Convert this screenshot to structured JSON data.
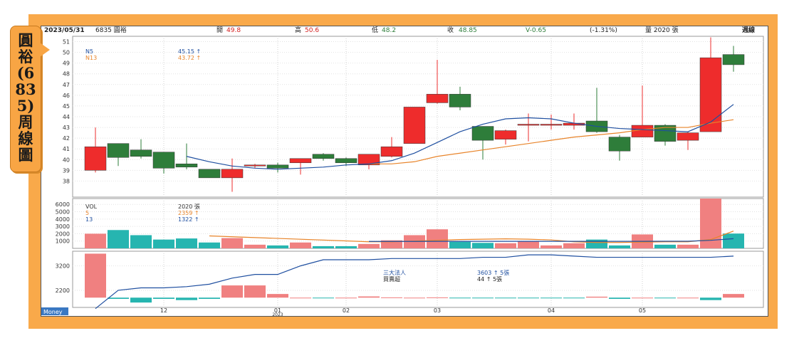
{
  "tag_title": "圓裕(6835)周線圖",
  "header": {
    "date": "2023/05/31",
    "stock": "6835 圓裕",
    "open_label": "開",
    "open_value": "49.8",
    "high_label": "高",
    "high_value": "50.6",
    "low_label": "低",
    "low_value": "48.2",
    "close_label": "收",
    "close_value": "48.85",
    "change": "V-0.65",
    "change_pct": "(-1.31%)",
    "volume": "量 2020 張",
    "period": "週線"
  },
  "colors": {
    "up": "#ee2c2c",
    "down": "#2e7d3a",
    "ma5": "#1f4fa0",
    "ma13": "#e8842a",
    "vol_up": "#f08080",
    "vol_down": "#26b5b0",
    "line3": "#1f4fa0"
  },
  "chart_data": [
    {
      "type": "candlestick",
      "legend": [
        {
          "name": "N5",
          "value": "45.15 ↑"
        },
        {
          "name": "N13",
          "value": "43.72 ↑"
        }
      ],
      "ylim": [
        36.5,
        51.5
      ],
      "yticks": [
        38,
        39,
        40,
        41,
        42,
        43,
        44,
        45,
        46,
        47,
        48,
        49,
        50,
        51
      ],
      "candles": [
        {
          "o": 39.0,
          "h": 43.0,
          "l": 38.8,
          "c": 41.2
        },
        {
          "o": 41.5,
          "h": 41.5,
          "l": 39.4,
          "c": 40.2
        },
        {
          "o": 40.9,
          "h": 41.9,
          "l": 40.1,
          "c": 40.3
        },
        {
          "o": 40.7,
          "h": 40.7,
          "l": 38.7,
          "c": 39.2
        },
        {
          "o": 39.6,
          "h": 41.5,
          "l": 39.1,
          "c": 39.3
        },
        {
          "o": 39.1,
          "h": 39.1,
          "l": 38.3,
          "c": 38.3
        },
        {
          "o": 38.3,
          "h": 40.1,
          "l": 37.0,
          "c": 39.1
        },
        {
          "o": 39.5,
          "h": 39.6,
          "l": 39.2,
          "c": 39.5
        },
        {
          "o": 39.5,
          "h": 39.7,
          "l": 38.8,
          "c": 39.2
        },
        {
          "o": 39.7,
          "h": 40.1,
          "l": 38.6,
          "c": 40.1
        },
        {
          "o": 40.5,
          "h": 40.6,
          "l": 39.9,
          "c": 40.1
        },
        {
          "o": 40.1,
          "h": 40.2,
          "l": 39.4,
          "c": 39.7
        },
        {
          "o": 39.5,
          "h": 40.4,
          "l": 39.1,
          "c": 40.5
        },
        {
          "o": 40.3,
          "h": 42.1,
          "l": 40.2,
          "c": 41.2
        },
        {
          "o": 41.5,
          "h": 44.9,
          "l": 41.5,
          "c": 44.9
        },
        {
          "o": 45.3,
          "h": 49.3,
          "l": 45.2,
          "c": 46.1
        },
        {
          "o": 46.1,
          "h": 46.8,
          "l": 44.6,
          "c": 44.9
        },
        {
          "o": 43.1,
          "h": 43.1,
          "l": 40.0,
          "c": 41.8
        },
        {
          "o": 41.9,
          "h": 42.8,
          "l": 41.4,
          "c": 42.7
        },
        {
          "o": 43.2,
          "h": 44.3,
          "l": 41.7,
          "c": 43.3
        },
        {
          "o": 43.3,
          "h": 44.2,
          "l": 42.8,
          "c": 43.3
        },
        {
          "o": 43.2,
          "h": 44.3,
          "l": 42.8,
          "c": 43.4
        },
        {
          "o": 43.6,
          "h": 46.7,
          "l": 42.5,
          "c": 42.6
        },
        {
          "o": 42.1,
          "h": 42.3,
          "l": 39.9,
          "c": 40.8
        },
        {
          "o": 42.1,
          "h": 46.9,
          "l": 42.1,
          "c": 43.2
        },
        {
          "o": 43.2,
          "h": 43.3,
          "l": 41.3,
          "c": 41.7
        },
        {
          "o": 41.8,
          "h": 42.6,
          "l": 40.9,
          "c": 42.5
        },
        {
          "o": 42.6,
          "h": 51.4,
          "l": 42.6,
          "c": 49.5
        },
        {
          "o": 49.8,
          "h": 50.6,
          "l": 48.2,
          "c": 48.85
        }
      ],
      "ma5": [
        null,
        null,
        null,
        null,
        40.3,
        39.8,
        39.4,
        39.2,
        39.1,
        39.2,
        39.3,
        39.5,
        39.6,
        39.9,
        40.6,
        41.6,
        42.6,
        43.3,
        43.8,
        43.9,
        43.8,
        43.4,
        43.1,
        42.9,
        42.8,
        42.7,
        42.6,
        43.5,
        45.15
      ],
      "ma13": [
        null,
        null,
        null,
        null,
        null,
        null,
        null,
        null,
        null,
        null,
        null,
        null,
        39.6,
        39.6,
        39.8,
        40.3,
        40.6,
        40.9,
        41.2,
        41.5,
        41.8,
        42.1,
        42.3,
        42.5,
        42.8,
        43.0,
        43.0,
        43.4,
        43.72
      ]
    },
    {
      "type": "bar",
      "legend": [
        {
          "name": "VOL",
          "value": "2020 張"
        },
        {
          "name": "5",
          "value": "2359 ↑"
        },
        {
          "name": "13",
          "value": "1322 ↑"
        }
      ],
      "ylim": [
        0,
        6800
      ],
      "yticks": [
        1000,
        2000,
        3000,
        4000,
        5000,
        6000
      ],
      "values": [
        2000,
        2500,
        1800,
        1200,
        1350,
        800,
        1400,
        500,
        400,
        800,
        300,
        300,
        600,
        1100,
        1800,
        2600,
        900,
        750,
        700,
        1000,
        400,
        700,
        1200,
        400,
        1900,
        500,
        500,
        6900,
        2020
      ],
      "ma5": [
        null,
        null,
        null,
        null,
        null,
        1700,
        null,
        null,
        null,
        null,
        null,
        null,
        900,
        900,
        1000,
        1100,
        1200,
        1250,
        1300,
        1250,
        1150,
        900,
        800,
        800,
        850,
        900,
        900,
        1200,
        2359
      ],
      "ma13": [
        null,
        null,
        null,
        null,
        null,
        null,
        null,
        null,
        null,
        null,
        null,
        null,
        950,
        950,
        950,
        960,
        960,
        960,
        960,
        960,
        960,
        960,
        960,
        960,
        960,
        970,
        970,
        1100,
        1322
      ]
    },
    {
      "type": "bar",
      "legend": [
        {
          "name": "三大法人",
          "value": "3603 ↑ 5張"
        },
        {
          "name": "買賣超",
          "value": "44 ↑ 5張"
        }
      ],
      "ylim": [
        1500,
        3800
      ],
      "yticks": [
        2200,
        3200
      ],
      "baseline": 1900,
      "bars": [
        3700,
        1850,
        1700,
        1850,
        1800,
        1850,
        2400,
        2400,
        2050,
        1900,
        1880,
        1900,
        1950,
        1910,
        1900,
        1910,
        1890,
        1880,
        1890,
        1880,
        1880,
        1890,
        1940,
        1850,
        1900,
        1890,
        1900,
        1800,
        2050
      ],
      "line": [
        1450,
        2200,
        2300,
        2300,
        2350,
        2450,
        2700,
        2850,
        2850,
        3200,
        3450,
        3450,
        3450,
        3500,
        3500,
        3500,
        3500,
        3550,
        3550,
        3650,
        3650,
        3600,
        3550,
        3550,
        3550,
        3550,
        3550,
        3550,
        3600
      ]
    }
  ],
  "x_ticks": [
    {
      "index": 3,
      "label": "12"
    },
    {
      "index": 8,
      "label": "01"
    },
    {
      "index": 11,
      "label": "02"
    },
    {
      "index": 15,
      "label": "03"
    },
    {
      "index": 20,
      "label": "04"
    },
    {
      "index": 24,
      "label": "05"
    }
  ],
  "x_year": "2023",
  "corner_label": "Money"
}
